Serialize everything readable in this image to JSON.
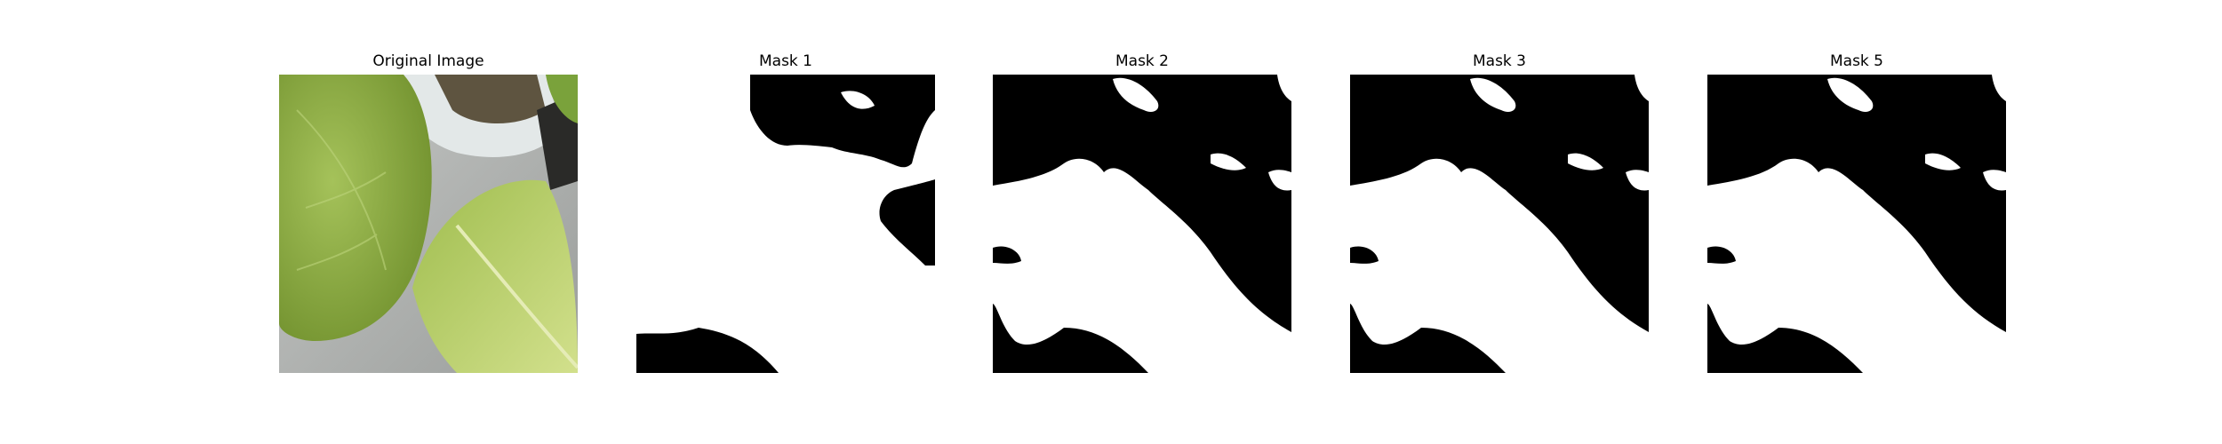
{
  "figure": {
    "panels": [
      {
        "title": "Original Image",
        "kind": "photo"
      },
      {
        "title": "Mask 1",
        "kind": "mask"
      },
      {
        "title": "Mask 2",
        "kind": "mask"
      },
      {
        "title": "Mask 3",
        "kind": "mask"
      },
      {
        "title": "Mask 5",
        "kind": "mask"
      }
    ]
  },
  "colors": {
    "mask_foreground": "#ffffff",
    "mask_background": "#000000",
    "leaf_upper": "#8fb04a",
    "leaf_lower": "#c2d67a",
    "pot_rim": "#dfe5e5",
    "tray": "#a9adab"
  }
}
